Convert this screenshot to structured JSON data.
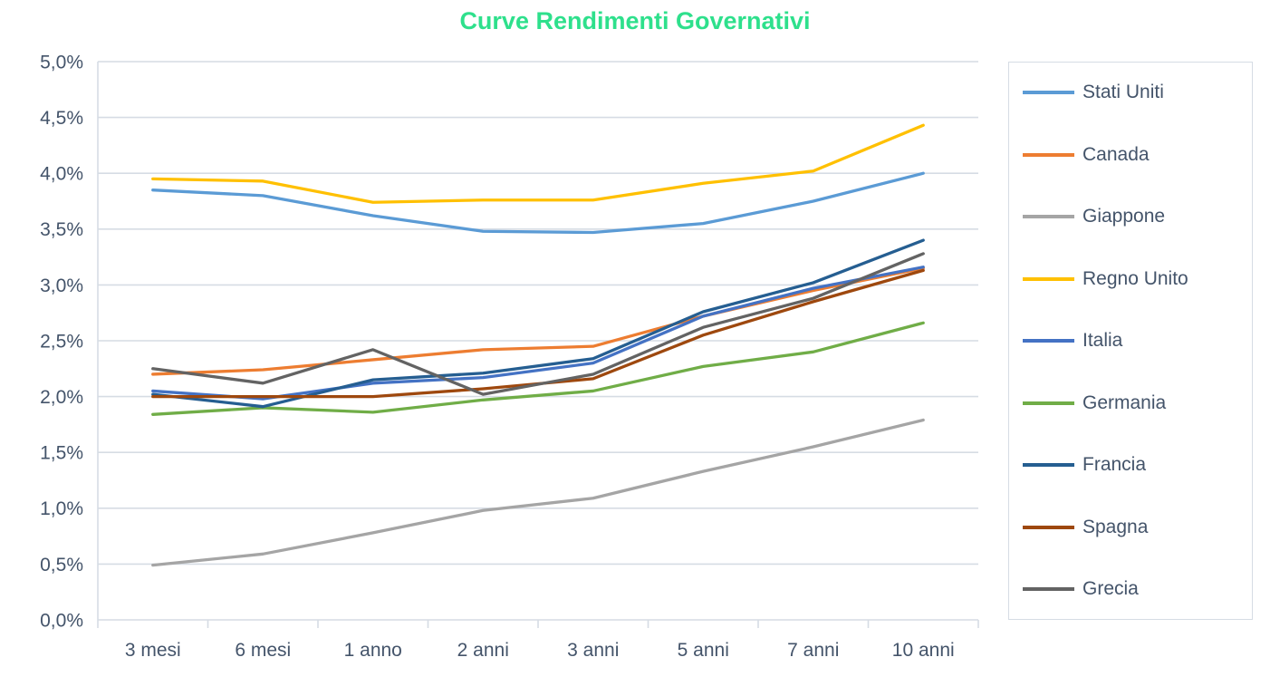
{
  "chart_data": {
    "type": "line",
    "title": "Curve Rendimenti Governativi",
    "title_color": "#2ee08c",
    "axis_text_color": "#44546a",
    "grid_color": "#d6dce4",
    "grid": true,
    "legend_position": "right",
    "xlabel": "",
    "ylabel": "",
    "ylim": [
      0,
      5
    ],
    "y_tick_step": 0.5,
    "y_ticks": [
      "5,0%",
      "4,5%",
      "4,0%",
      "3,5%",
      "3,0%",
      "2,5%",
      "2,0%",
      "1,5%",
      "1,0%",
      "0,5%",
      "0,0%"
    ],
    "categories": [
      "3 mesi",
      "6 mesi",
      "1 anno",
      "2 anni",
      "3 anni",
      "5 anni",
      "7 anni",
      "10 anni"
    ],
    "series": [
      {
        "name": "Stati Uniti",
        "color": "#5b9bd5",
        "values": [
          3.85,
          3.8,
          3.62,
          3.48,
          3.47,
          3.55,
          3.75,
          4.0
        ]
      },
      {
        "name": "Canada",
        "color": "#ed7d31",
        "values": [
          2.2,
          2.24,
          2.33,
          2.42,
          2.45,
          2.72,
          2.95,
          3.15
        ]
      },
      {
        "name": "Giappone",
        "color": "#a5a5a5",
        "values": [
          0.49,
          0.59,
          0.78,
          0.98,
          1.09,
          1.33,
          1.55,
          1.79
        ]
      },
      {
        "name": "Regno Unito",
        "color": "#ffc000",
        "values": [
          3.95,
          3.93,
          3.74,
          3.76,
          3.76,
          3.91,
          4.02,
          4.43
        ]
      },
      {
        "name": "Italia",
        "color": "#4472c4",
        "values": [
          2.05,
          1.98,
          2.12,
          2.17,
          2.3,
          2.72,
          2.97,
          3.16
        ]
      },
      {
        "name": "Germania",
        "color": "#70ad47",
        "values": [
          1.84,
          1.9,
          1.86,
          1.97,
          2.05,
          2.27,
          2.4,
          2.66
        ]
      },
      {
        "name": "Francia",
        "color": "#255e91",
        "values": [
          2.02,
          1.91,
          2.15,
          2.21,
          2.34,
          2.76,
          3.02,
          3.4
        ]
      },
      {
        "name": "Spagna",
        "color": "#9e480e",
        "values": [
          2.0,
          2.0,
          2.0,
          2.07,
          2.16,
          2.55,
          2.85,
          3.13
        ]
      },
      {
        "name": "Grecia",
        "color": "#636363",
        "values": [
          2.25,
          2.12,
          2.42,
          2.02,
          2.2,
          2.62,
          2.88,
          3.28
        ]
      }
    ]
  }
}
